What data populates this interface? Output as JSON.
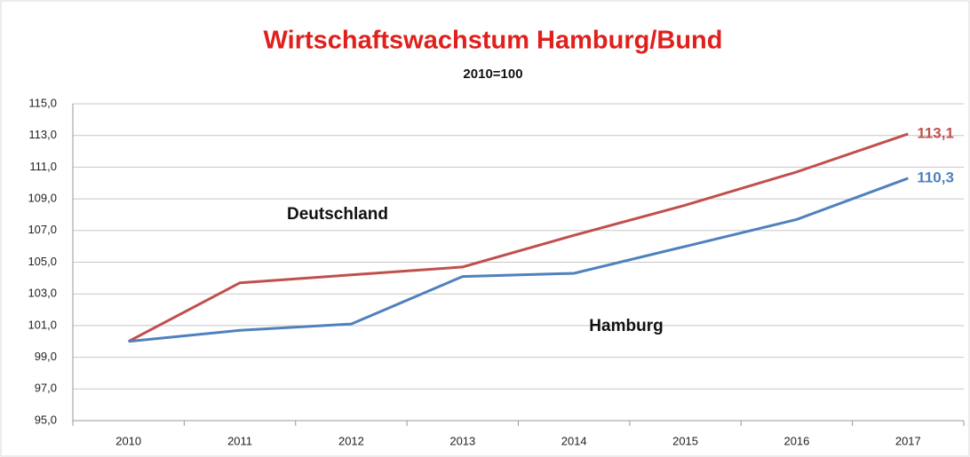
{
  "chart_data": {
    "type": "line",
    "title": "Wirtschaftswachstum  Hamburg/Bund",
    "subtitle": "2010=100",
    "title_color": "#e0201c",
    "categories": [
      "2010",
      "2011",
      "2012",
      "2013",
      "2014",
      "2015",
      "2016",
      "2017"
    ],
    "series": [
      {
        "name": "Deutschland",
        "color": "#c0504d",
        "values": [
          100,
          103.7,
          104.2,
          104.7,
          106.7,
          108.6,
          110.7,
          113.1
        ],
        "value_labels": [
          null,
          null,
          null,
          null,
          null,
          null,
          null,
          "113,1"
        ]
      },
      {
        "name": "Hamburg",
        "color": "#4f81bd",
        "values": [
          100,
          100.7,
          101.1,
          104.1,
          104.3,
          106.0,
          107.7,
          110.3
        ],
        "value_labels": [
          null,
          null,
          null,
          null,
          null,
          null,
          null,
          "110,3"
        ]
      }
    ],
    "ylim": [
      95,
      115
    ],
    "yticks": [
      {
        "value": 95,
        "label": "95,0"
      },
      {
        "value": 97,
        "label": "97,0"
      },
      {
        "value": 99,
        "label": "99,0"
      },
      {
        "value": 101,
        "label": "101,0"
      },
      {
        "value": 103,
        "label": "103,0"
      },
      {
        "value": 105,
        "label": "105,0"
      },
      {
        "value": 107,
        "label": "107,0"
      },
      {
        "value": 109,
        "label": "109,0"
      },
      {
        "value": 111,
        "label": "111,0"
      },
      {
        "value": 113,
        "label": "113,0"
      },
      {
        "value": 115,
        "label": "115,0"
      }
    ],
    "grid": true
  }
}
